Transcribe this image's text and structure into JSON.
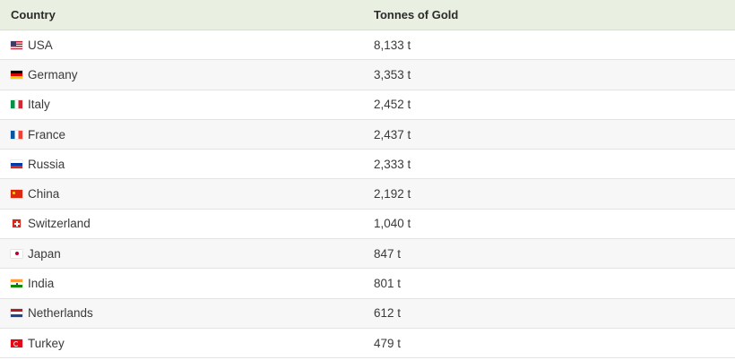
{
  "table": {
    "headers": {
      "country": "Country",
      "value": "Tonnes of Gold"
    },
    "rows": [
      {
        "country": "USA",
        "flag": "usa-flag-icon",
        "value": "8,133 t"
      },
      {
        "country": "Germany",
        "flag": "germany-flag-icon",
        "value": "3,353 t"
      },
      {
        "country": "Italy",
        "flag": "italy-flag-icon",
        "value": "2,452 t"
      },
      {
        "country": "France",
        "flag": "france-flag-icon",
        "value": "2,437 t"
      },
      {
        "country": "Russia",
        "flag": "russia-flag-icon",
        "value": "2,333 t"
      },
      {
        "country": "China",
        "flag": "china-flag-icon",
        "value": "2,192 t"
      },
      {
        "country": "Switzerland",
        "flag": "switzerland-flag-icon",
        "value": "1,040 t"
      },
      {
        "country": "Japan",
        "flag": "japan-flag-icon",
        "value": "847 t"
      },
      {
        "country": "India",
        "flag": "india-flag-icon",
        "value": "801 t"
      },
      {
        "country": "Netherlands",
        "flag": "netherlands-flag-icon",
        "value": "612 t"
      },
      {
        "country": "Turkey",
        "flag": "turkey-flag-icon",
        "value": "479 t"
      }
    ],
    "colors": {
      "header_bg": "#eaf0e1",
      "row_alt_bg": "#f7f7f7",
      "border": "#e3e3e3"
    }
  }
}
